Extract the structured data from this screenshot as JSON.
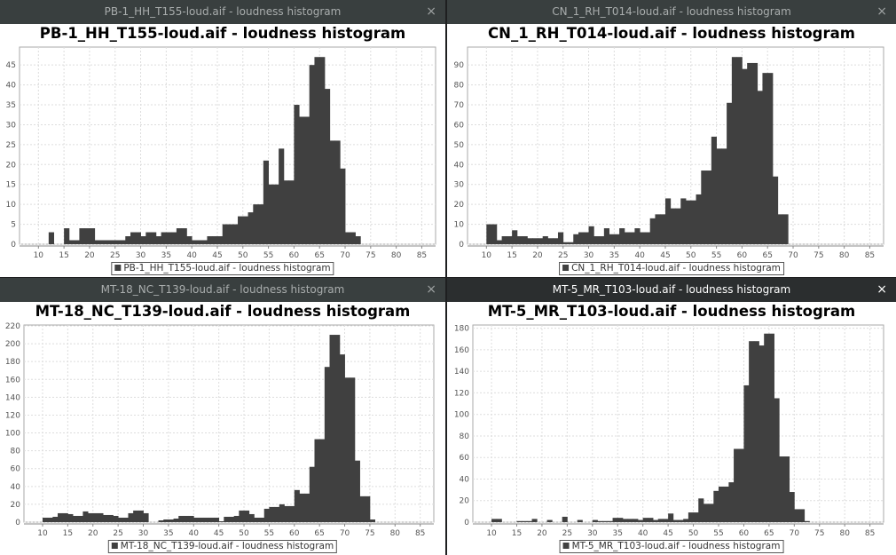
{
  "colors": {
    "bar": "#404040",
    "grid": "#dddddd",
    "titlebar_inactive": "#393f3f",
    "titlebar_active": "#2b2e2f"
  },
  "windows": [
    {
      "window_title": "PB-1_HH_T155-loud.aif - loudness histogram",
      "close_icon": "×",
      "active": false
    },
    {
      "window_title": "CN_1_RH_T014-loud.aif - loudness histogram",
      "close_icon": "×",
      "active": false
    },
    {
      "window_title": "MT-18_NC_T139-loud.aif - loudness histogram",
      "close_icon": "×",
      "active": false
    },
    {
      "window_title": "MT-5_MR_T103-loud.aif - loudness histogram",
      "close_icon": "×",
      "active": true
    }
  ],
  "chart_data": [
    {
      "type": "bar",
      "title": "PB-1_HH_T155-loud.aif - loudness histogram",
      "legend": "PB-1_HH_T155-loud.aif - loudness histogram",
      "legend_placement": "bottom",
      "grid": true,
      "xlim": [
        6.3,
        87.7
      ],
      "ylim": [
        0,
        49.5
      ],
      "x_ticks": [
        "10",
        "15",
        "20",
        "25",
        "30",
        "35",
        "40",
        "45",
        "50",
        "55",
        "60",
        "65",
        "70",
        "75",
        "80",
        "85"
      ],
      "y_ticks": [
        "0",
        "5",
        "10",
        "15",
        "20",
        "25",
        "30",
        "35",
        "40",
        "45"
      ],
      "bin_start": 10,
      "bin_width": 1,
      "counts": [
        0,
        0,
        3,
        0,
        0,
        4,
        1,
        1,
        4,
        4,
        4,
        1,
        1,
        1,
        1,
        1,
        1,
        2,
        3,
        3,
        2,
        3,
        3,
        2,
        3,
        3,
        3,
        4,
        4,
        2,
        1,
        1,
        1,
        2,
        2,
        2,
        5,
        5,
        5,
        7,
        7,
        8,
        10,
        10,
        21,
        15,
        15,
        24,
        16,
        16,
        35,
        32,
        32,
        45,
        47,
        47,
        39,
        26,
        26,
        19,
        3,
        3,
        2
      ]
    },
    {
      "type": "bar",
      "title": "CN_1_RH_T014-loud.aif - loudness histogram",
      "legend": "CN_1_RH_T014-loud.aif - loudness histogram",
      "legend_placement": "bottom",
      "grid": true,
      "xlim": [
        6.3,
        87.7
      ],
      "ylim": [
        0,
        99
      ],
      "x_ticks": [
        "10",
        "15",
        "20",
        "25",
        "30",
        "35",
        "40",
        "45",
        "50",
        "55",
        "60",
        "65",
        "70",
        "75",
        "80",
        "85"
      ],
      "y_ticks": [
        "0",
        "10",
        "20",
        "30",
        "40",
        "50",
        "60",
        "70",
        "80",
        "90"
      ],
      "bin_start": 10,
      "bin_width": 1,
      "counts": [
        10,
        10,
        2,
        4,
        4,
        7,
        4,
        4,
        3,
        3,
        3,
        4,
        3,
        3,
        6,
        1,
        1,
        5,
        6,
        6,
        9,
        4,
        4,
        8,
        5,
        5,
        8,
        6,
        6,
        8,
        6,
        6,
        13,
        15,
        15,
        23,
        18,
        18,
        23,
        22,
        22,
        25,
        37,
        37,
        54,
        48,
        48,
        71,
        94,
        94,
        88,
        91,
        91,
        77,
        86,
        86,
        34,
        15,
        15
      ]
    },
    {
      "type": "bar",
      "title": "MT-18_NC_T139-loud.aif - loudness histogram",
      "legend": "MT-18_NC_T139-loud.aif - loudness histogram",
      "legend_placement": "bottom",
      "grid": true,
      "xlim": [
        6.3,
        87.7
      ],
      "ylim": [
        0,
        221
      ],
      "x_ticks": [
        "10",
        "15",
        "20",
        "25",
        "30",
        "35",
        "40",
        "45",
        "50",
        "55",
        "60",
        "65",
        "70",
        "75",
        "80",
        "85"
      ],
      "y_ticks": [
        "0",
        "20",
        "40",
        "60",
        "80",
        "100",
        "120",
        "140",
        "160",
        "180",
        "200",
        "220"
      ],
      "bin_start": 10,
      "bin_width": 1,
      "counts": [
        5,
        5,
        6,
        10,
        10,
        9,
        7,
        7,
        12,
        10,
        10,
        10,
        8,
        8,
        7,
        5,
        5,
        10,
        13,
        13,
        10,
        0,
        0,
        2,
        3,
        3,
        4,
        7,
        7,
        7,
        5,
        5,
        5,
        5,
        5,
        1,
        6,
        6,
        7,
        13,
        13,
        9,
        5,
        5,
        15,
        17,
        17,
        20,
        18,
        18,
        36,
        32,
        32,
        62,
        93,
        93,
        174,
        210,
        210,
        188,
        162,
        162,
        69,
        29,
        29,
        3
      ]
    },
    {
      "type": "bar",
      "title": "MT-5_MR_T103-loud.aif - loudness histogram",
      "legend": "MT-5_MR_T103-loud.aif - loudness histogram",
      "legend_placement": "bottom",
      "grid": true,
      "xlim": [
        6.3,
        87.7
      ],
      "ylim": [
        0,
        183
      ],
      "x_ticks": [
        "10",
        "15",
        "20",
        "25",
        "30",
        "35",
        "40",
        "45",
        "50",
        "55",
        "60",
        "65",
        "70",
        "75",
        "80",
        "85"
      ],
      "y_ticks": [
        "0",
        "20",
        "40",
        "60",
        "80",
        "100",
        "120",
        "140",
        "160",
        "180"
      ],
      "bin_start": 10,
      "bin_width": 1,
      "counts": [
        3,
        3,
        0,
        0,
        0,
        1,
        1,
        1,
        3,
        0,
        0,
        2,
        0,
        0,
        5,
        0,
        0,
        2,
        0,
        0,
        2,
        1,
        1,
        1,
        4,
        4,
        3,
        3,
        3,
        2,
        4,
        4,
        2,
        3,
        3,
        8,
        2,
        2,
        3,
        9,
        9,
        22,
        17,
        17,
        29,
        33,
        33,
        37,
        68,
        68,
        127,
        168,
        168,
        164,
        175,
        175,
        115,
        61,
        61,
        28,
        12,
        12,
        1
      ]
    }
  ]
}
